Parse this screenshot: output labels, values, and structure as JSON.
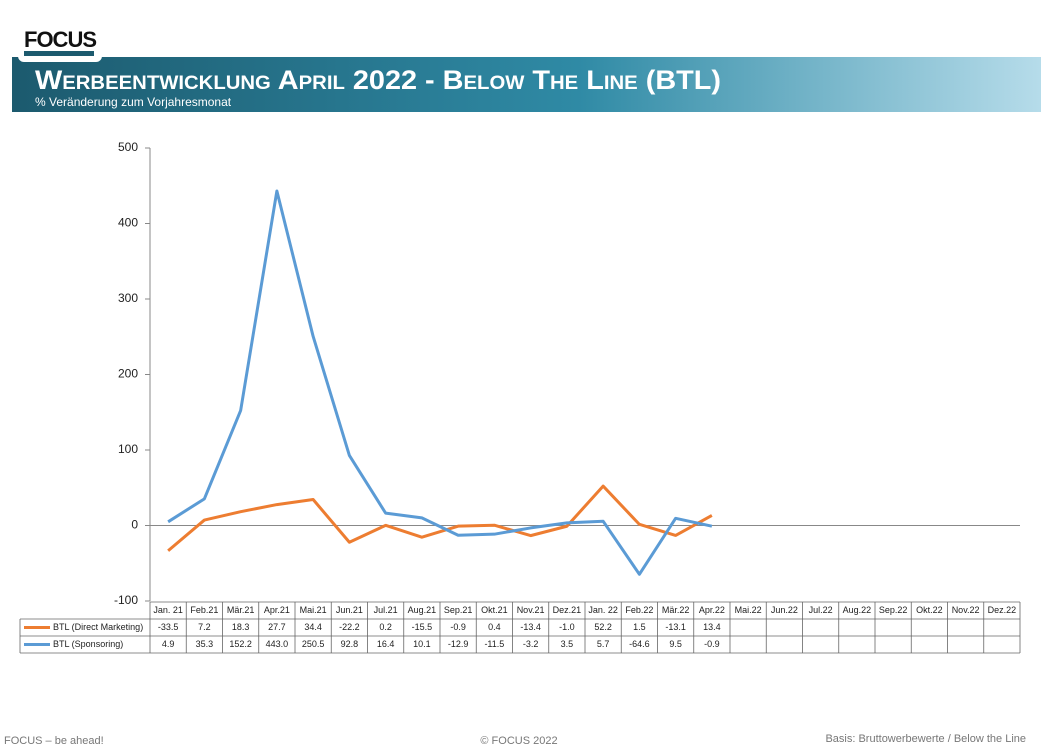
{
  "header": {
    "logo": "FOCUS",
    "title": "Werbeentwicklung April 2022 - Below The Line (BTL)",
    "subtitle": "% Veränderung zum Vorjahresmonat"
  },
  "chart_data": {
    "type": "line",
    "categories": [
      "Jan. 21",
      "Feb.21",
      "Mär.21",
      "Apr.21",
      "Mai.21",
      "Jun.21",
      "Jul.21",
      "Aug.21",
      "Sep.21",
      "Okt.21",
      "Nov.21",
      "Dez.21",
      "Jan. 22",
      "Feb.22",
      "Mär.22",
      "Apr.22",
      "Mai.22",
      "Jun.22",
      "Jul.22",
      "Aug.22",
      "Sep.22",
      "Okt.22",
      "Nov.22",
      "Dez.22"
    ],
    "series": [
      {
        "name": "BTL (Direct Marketing)",
        "color": "#ed7d31",
        "values": [
          -33.5,
          7.2,
          18.3,
          27.7,
          34.4,
          -22.2,
          0.2,
          -15.5,
          -0.9,
          0.4,
          -13.4,
          -1.0,
          52.2,
          1.5,
          -13.1,
          13.4,
          null,
          null,
          null,
          null,
          null,
          null,
          null,
          null
        ],
        "value_labels": [
          "-33.5",
          "7.2",
          "18.3",
          "27.7",
          "34.4",
          "-22.2",
          "0.2",
          "-15.5",
          "-0.9",
          "0.4",
          "-13.4",
          "-1.0",
          "52.2",
          "1.5",
          "-13.1",
          "13.4",
          null,
          null,
          null,
          null,
          null,
          null,
          null,
          null
        ]
      },
      {
        "name": "BTL (Sponsoring)",
        "color": "#5b9bd5",
        "values": [
          4.9,
          35.3,
          152.2,
          443.0,
          250.5,
          92.8,
          16.4,
          10.1,
          -12.9,
          -11.5,
          -3.2,
          3.5,
          5.7,
          -64.6,
          9.5,
          -0.9,
          null,
          null,
          null,
          null,
          null,
          null,
          null,
          null
        ],
        "value_labels": [
          "4.9",
          "35.3",
          "152.2",
          "443.0",
          "250.5",
          "92.8",
          "16.4",
          "10.1",
          "-12.9",
          "-11.5",
          "-3.2",
          "3.5",
          "5.7",
          "-64.6",
          "9.5",
          "-0.9",
          null,
          null,
          null,
          null,
          null,
          null,
          null,
          null
        ]
      }
    ],
    "ylim": [
      -100,
      500
    ],
    "yticks": [
      -100,
      0,
      100,
      200,
      300,
      400,
      500
    ],
    "grid": false
  },
  "footer": {
    "left": "FOCUS – be ahead!",
    "center": "© FOCUS 2022",
    "right": "Basis: Bruttowerbewerte / Below the Line"
  }
}
